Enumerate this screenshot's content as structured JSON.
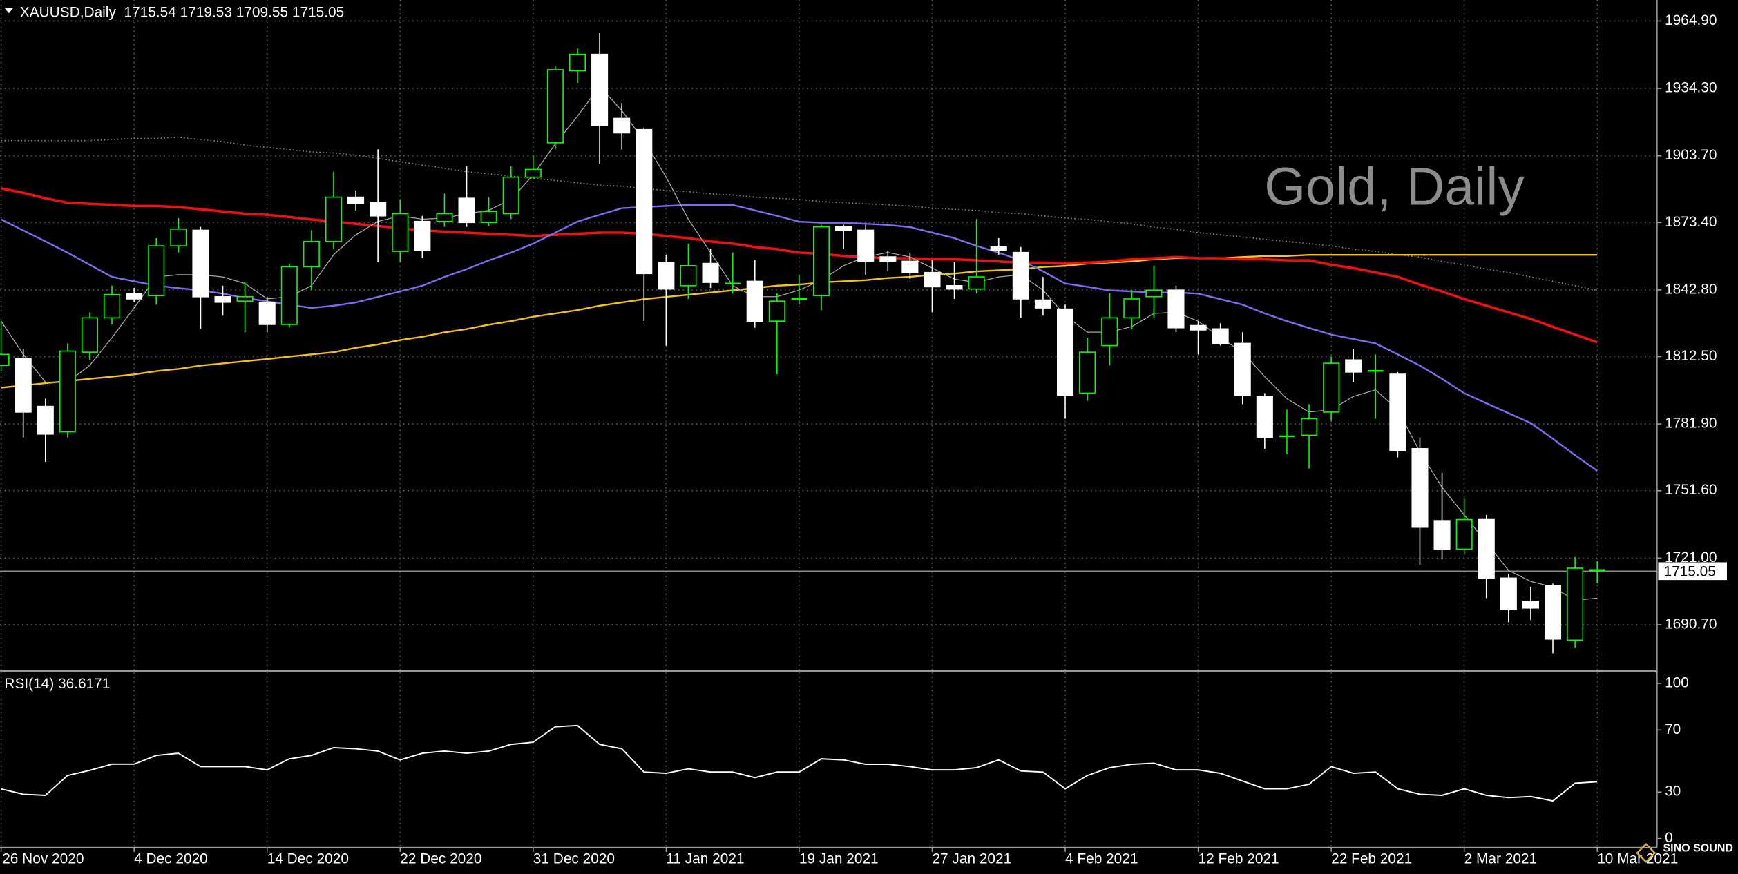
{
  "chart_data": [
    {
      "type": "candlestick",
      "title": "XAUUSD,Daily  1715.54 1719.53 1709.55 1715.05",
      "watermark": "Gold, Daily",
      "categories": [
        "26 Nov 2020",
        null,
        null,
        null,
        null,
        null,
        "4 Dec 2020",
        null,
        null,
        null,
        null,
        null,
        "14 Dec 2020",
        null,
        null,
        null,
        null,
        null,
        "22 Dec 2020",
        null,
        null,
        null,
        null,
        null,
        "31 Dec 2020",
        null,
        null,
        null,
        null,
        null,
        "11 Jan 2021",
        null,
        null,
        null,
        null,
        null,
        "19 Jan 2021",
        null,
        null,
        null,
        null,
        null,
        "27 Jan 2021",
        null,
        null,
        null,
        null,
        null,
        "4 Feb 2021",
        null,
        null,
        null,
        null,
        null,
        "12 Feb 2021",
        null,
        null,
        null,
        null,
        null,
        "22 Feb 2021",
        null,
        null,
        null,
        null,
        null,
        "2 Mar 2021",
        null,
        null,
        null,
        null,
        null,
        "10 Mar 2021"
      ],
      "open": [
        1808.5,
        1811.5,
        1789.9,
        1778.3,
        1814.5,
        1830.1,
        1841.2,
        1840.2,
        1862.8,
        1869.9,
        1839.7,
        1837.7,
        1837.2,
        1827.1,
        1853.3,
        1864.8,
        1884.9,
        1882.4,
        1860.3,
        1873.9,
        1873.9,
        1884.4,
        1873.4,
        1877.4,
        1894.0,
        1909.6,
        1942.3,
        1949.8,
        1920.7,
        1915.6,
        1855.3,
        1844.7,
        1854.8,
        1845.7,
        1846.7,
        1828.6,
        1838.7,
        1840.2,
        1871.4,
        1869.9,
        1857.8,
        1855.8,
        1850.7,
        1844.7,
        1843.2,
        1862.3,
        1859.8,
        1838.2,
        1834.1,
        1795.9,
        1817.5,
        1830.1,
        1839.7,
        1842.7,
        1826.6,
        1825.1,
        1818.5,
        1794.4,
        1776.3,
        1776.8,
        1787.3,
        1811.0,
        1806.0,
        1804.5,
        1770.7,
        1738.0,
        1725.0,
        1738.5,
        1711.9,
        1701.3,
        1708.4,
        1683.7,
        1715.54
      ],
      "high": [
        1828.6,
        1816.0,
        1793.4,
        1818.5,
        1832.6,
        1844.7,
        1843.7,
        1866.3,
        1875.4,
        1871.4,
        1844.7,
        1846.2,
        1839.7,
        1854.8,
        1869.9,
        1896.5,
        1888.0,
        1906.6,
        1883.9,
        1876.4,
        1886.5,
        1899.0,
        1884.9,
        1899.0,
        1904.1,
        1944.3,
        1952.4,
        1959.4,
        1927.7,
        1916.6,
        1858.8,
        1863.8,
        1861.3,
        1859.8,
        1856.3,
        1841.2,
        1849.7,
        1872.4,
        1872.4,
        1872.4,
        1860.3,
        1859.8,
        1856.3,
        1855.3,
        1874.9,
        1866.3,
        1862.3,
        1848.7,
        1836.1,
        1821.1,
        1841.2,
        1842.7,
        1853.8,
        1844.7,
        1828.6,
        1827.6,
        1823.6,
        1795.9,
        1788.4,
        1790.9,
        1812.5,
        1816.0,
        1813.5,
        1805.5,
        1775.8,
        1759.7,
        1748.1,
        1740.6,
        1713.9,
        1707.9,
        1709.4,
        1721.4,
        1719.53
      ],
      "low": [
        1806.0,
        1775.8,
        1764.7,
        1775.8,
        1811.0,
        1827.1,
        1837.2,
        1836.1,
        1859.8,
        1825.1,
        1831.1,
        1823.6,
        1823.6,
        1825.6,
        1842.7,
        1861.3,
        1878.9,
        1855.3,
        1855.3,
        1857.3,
        1871.4,
        1871.4,
        1871.9,
        1874.9,
        1893.0,
        1906.6,
        1936.8,
        1900.0,
        1906.6,
        1828.6,
        1817.5,
        1838.7,
        1843.7,
        1841.2,
        1825.6,
        1804.5,
        1836.1,
        1833.6,
        1861.3,
        1849.7,
        1851.2,
        1847.7,
        1832.6,
        1838.7,
        1841.2,
        1858.8,
        1830.1,
        1831.1,
        1784.3,
        1792.4,
        1808.5,
        1825.1,
        1830.1,
        1823.6,
        1813.5,
        1817.5,
        1790.9,
        1770.7,
        1768.2,
        1761.7,
        1783.3,
        1800.9,
        1784.3,
        1766.7,
        1717.9,
        1720.4,
        1722.9,
        1702.8,
        1691.8,
        1692.8,
        1677.7,
        1680.2,
        1709.55
      ],
      "close": [
        1813.5,
        1787.3,
        1777.3,
        1815.0,
        1830.1,
        1840.7,
        1838.7,
        1862.8,
        1870.4,
        1839.7,
        1837.2,
        1839.7,
        1827.1,
        1853.3,
        1864.8,
        1884.9,
        1881.9,
        1876.4,
        1877.4,
        1860.8,
        1877.4,
        1873.4,
        1878.4,
        1894.0,
        1897.5,
        1942.8,
        1949.8,
        1917.6,
        1914.1,
        1850.2,
        1843.2,
        1853.8,
        1846.2,
        1846.7,
        1828.6,
        1837.7,
        1839.7,
        1871.4,
        1869.9,
        1855.8,
        1855.8,
        1850.7,
        1844.2,
        1843.2,
        1848.7,
        1860.8,
        1838.7,
        1834.6,
        1794.9,
        1814.5,
        1830.1,
        1838.7,
        1842.7,
        1825.6,
        1824.6,
        1818.5,
        1794.9,
        1775.8,
        1775.3,
        1784.3,
        1809.5,
        1805.5,
        1805.0,
        1769.7,
        1735.0,
        1725.0,
        1738.5,
        1711.9,
        1697.8,
        1698.3,
        1684.2,
        1716.4,
        1715.05
      ],
      "bull_color": "#00ff00",
      "bear_color": "#ffffff",
      "series": [
        {
          "color": "#8a8a8a",
          "line_style": "dotted",
          "line_width": 1,
          "values": [
            1910.6,
            1910.6,
            1910.6,
            1910.6,
            1910.6,
            1911.1,
            1911.6,
            1911.6,
            1912.1,
            1911.1,
            1910.1,
            1908.6,
            1907.5,
            1906.5,
            1905.5,
            1905.0,
            1904.0,
            1902.5,
            1901.0,
            1899.5,
            1898.0,
            1896.5,
            1895.5,
            1894.5,
            1893.5,
            1892.5,
            1891.4,
            1890.4,
            1889.9,
            1888.9,
            1887.9,
            1887.4,
            1886.4,
            1885.9,
            1884.9,
            1884.4,
            1883.9,
            1882.9,
            1882.4,
            1881.9,
            1881.4,
            1880.9,
            1879.9,
            1879.4,
            1878.9,
            1877.9,
            1877.4,
            1876.4,
            1875.4,
            1874.8,
            1873.8,
            1872.8,
            1871.3,
            1870.3,
            1868.8,
            1867.8,
            1866.8,
            1865.8,
            1864.8,
            1863.8,
            1862.8,
            1861.3,
            1860.3,
            1858.7,
            1857.7,
            1855.7,
            1854.2,
            1852.2,
            1850.7,
            1848.7,
            1846.7,
            1844.7,
            1842.6
          ]
        },
        {
          "color": "#f2c21b",
          "line_style": "solid",
          "line_width": 1.5,
          "values": [
            1798.4,
            1799.4,
            1800.4,
            1801.4,
            1802.4,
            1803.4,
            1804.4,
            1805.9,
            1806.9,
            1808.4,
            1809.4,
            1810.4,
            1811.4,
            1812.5,
            1813.5,
            1814.5,
            1816.5,
            1818.0,
            1820.0,
            1821.5,
            1823.5,
            1825.0,
            1827.0,
            1828.6,
            1830.6,
            1832.1,
            1833.6,
            1835.6,
            1837.1,
            1838.6,
            1839.6,
            1840.6,
            1841.6,
            1842.6,
            1843.6,
            1844.7,
            1845.2,
            1846.2,
            1846.7,
            1847.2,
            1848.2,
            1848.7,
            1849.7,
            1850.2,
            1851.2,
            1851.7,
            1852.2,
            1853.2,
            1853.7,
            1854.7,
            1855.2,
            1855.7,
            1856.7,
            1857.2,
            1857.2,
            1857.2,
            1857.7,
            1858.2,
            1858.2,
            1858.7,
            1858.7,
            1858.7,
            1858.7,
            1858.7,
            1858.7,
            1858.7,
            1858.7,
            1858.7,
            1858.7,
            1858.7,
            1858.7,
            1858.7,
            1858.7
          ]
        },
        {
          "color": "#ee1111",
          "line_style": "solid",
          "line_width": 2.2,
          "values": [
            1888.9,
            1886.9,
            1884.4,
            1882.4,
            1881.9,
            1881.4,
            1880.9,
            1880.9,
            1880.4,
            1879.4,
            1878.4,
            1877.4,
            1876.9,
            1875.9,
            1874.8,
            1873.8,
            1872.8,
            1871.8,
            1870.8,
            1869.8,
            1869.3,
            1868.8,
            1868.3,
            1867.8,
            1867.3,
            1867.8,
            1868.3,
            1868.8,
            1868.8,
            1868.3,
            1867.3,
            1866.3,
            1864.8,
            1863.8,
            1862.3,
            1861.3,
            1859.7,
            1859.2,
            1858.2,
            1857.7,
            1857.2,
            1857.2,
            1856.7,
            1856.7,
            1856.2,
            1855.7,
            1855.2,
            1855.2,
            1854.7,
            1855.2,
            1855.7,
            1856.7,
            1857.2,
            1857.7,
            1857.2,
            1857.2,
            1856.7,
            1856.7,
            1856.2,
            1856.2,
            1854.2,
            1852.7,
            1850.7,
            1848.7,
            1845.2,
            1842.1,
            1838.6,
            1835.6,
            1832.6,
            1829.6,
            1826.0,
            1822.5,
            1819.0
          ]
        },
        {
          "color": "#7b6cf0",
          "line_style": "solid",
          "line_width": 1.5,
          "values": [
            1874.8,
            1869.8,
            1864.8,
            1859.7,
            1854.2,
            1848.7,
            1846.7,
            1844.7,
            1843.6,
            1842.6,
            1841.1,
            1839.1,
            1837.6,
            1836.1,
            1834.6,
            1835.6,
            1837.1,
            1839.6,
            1842.1,
            1844.7,
            1848.7,
            1852.2,
            1856.2,
            1859.7,
            1863.8,
            1868.8,
            1873.8,
            1876.9,
            1879.9,
            1880.4,
            1880.9,
            1881.4,
            1881.4,
            1881.4,
            1878.9,
            1876.4,
            1873.8,
            1873.3,
            1873.3,
            1872.8,
            1872.3,
            1871.3,
            1868.8,
            1866.3,
            1862.8,
            1859.7,
            1856.2,
            1851.2,
            1845.7,
            1844.2,
            1842.6,
            1842.1,
            1841.6,
            1841.6,
            1841.1,
            1838.6,
            1836.1,
            1832.1,
            1828.6,
            1825.5,
            1822.5,
            1820.5,
            1818.5,
            1813.5,
            1808.4,
            1802.4,
            1795.9,
            1791.3,
            1786.8,
            1782.3,
            1775.2,
            1767.7,
            1760.6
          ]
        },
        {
          "color": "#a8a8a8",
          "line_style": "solid",
          "line_width": 0.8,
          "values": [
            1828.6,
            1813.5,
            1800.9,
            1800.9,
            1808.5,
            1821.1,
            1834.6,
            1848.7,
            1849.7,
            1849.7,
            1848.7,
            1845.7,
            1838.7,
            1839.7,
            1844.7,
            1858.8,
            1867.8,
            1873.9,
            1876.4,
            1874.9,
            1875.4,
            1877.4,
            1878.9,
            1883.9,
            1895.0,
            1909.1,
            1921.7,
            1935.3,
            1924.2,
            1910.6,
            1894.0,
            1874.9,
            1859.8,
            1844.7,
            1839.7,
            1839.7,
            1842.7,
            1847.2,
            1853.8,
            1857.8,
            1859.8,
            1857.8,
            1852.7,
            1847.7,
            1846.2,
            1848.7,
            1849.7,
            1842.7,
            1831.1,
            1823.6,
            1823.6,
            1826.1,
            1832.1,
            1832.6,
            1828.6,
            1821.1,
            1814.5,
            1803.4,
            1793.4,
            1787.3,
            1788.4,
            1794.4,
            1797.4,
            1788.4,
            1769.2,
            1753.1,
            1740.6,
            1728.0,
            1715.4,
            1710.4,
            1707.8,
            1701.8,
            1702.8
          ]
        }
      ],
      "current_price": 1715.05,
      "ylim": [
        1670.07,
        1974.46
      ],
      "yticks": [
        {
          "value": 1964.9,
          "label": "1964.90"
        },
        {
          "value": 1934.3,
          "label": "1934.30"
        },
        {
          "value": 1903.7,
          "label": "1903.70"
        },
        {
          "value": 1873.4,
          "label": "1873.40"
        },
        {
          "value": 1842.8,
          "label": "1842.80"
        },
        {
          "value": 1812.5,
          "label": "1812.50"
        },
        {
          "value": 1781.9,
          "label": "1781.90"
        },
        {
          "value": 1751.6,
          "label": "1751.60"
        },
        {
          "value": 1721.0,
          "label": "1721.00"
        },
        {
          "value": 1690.7,
          "label": "1690.70"
        }
      ],
      "grid": true
    },
    {
      "type": "line",
      "title": "RSI(14) 36.6171",
      "color": "#ffffff",
      "values": [
        32,
        28.6,
        27.9,
        40.7,
        44,
        48,
        48,
        53.6,
        55,
        46.4,
        46.4,
        46.4,
        44.3,
        51.4,
        53.6,
        58.6,
        57.9,
        56.4,
        50.7,
        55,
        56.4,
        55,
        56.4,
        60.7,
        62.1,
        72.1,
        72.9,
        60.7,
        57.9,
        42.9,
        42.1,
        45,
        42.9,
        42.9,
        39.3,
        42.9,
        42.9,
        51.4,
        50.7,
        47.9,
        47.9,
        46.4,
        44.3,
        44.3,
        45.7,
        50.7,
        43.6,
        42.9,
        32.1,
        40.7,
        45.7,
        47.9,
        48.6,
        44.3,
        44.3,
        42.1,
        37.1,
        32.1,
        32.1,
        35,
        46.4,
        42.1,
        42.9,
        32.1,
        28.6,
        27.9,
        32.1,
        27.9,
        26.4,
        27.1,
        24.3,
        35.7,
        36.6171
      ],
      "ylim": [
        -5.7,
        107.1
      ],
      "yticks": [
        100,
        70,
        30,
        0
      ],
      "grid": true
    }
  ],
  "logo": "SINO SOUND"
}
